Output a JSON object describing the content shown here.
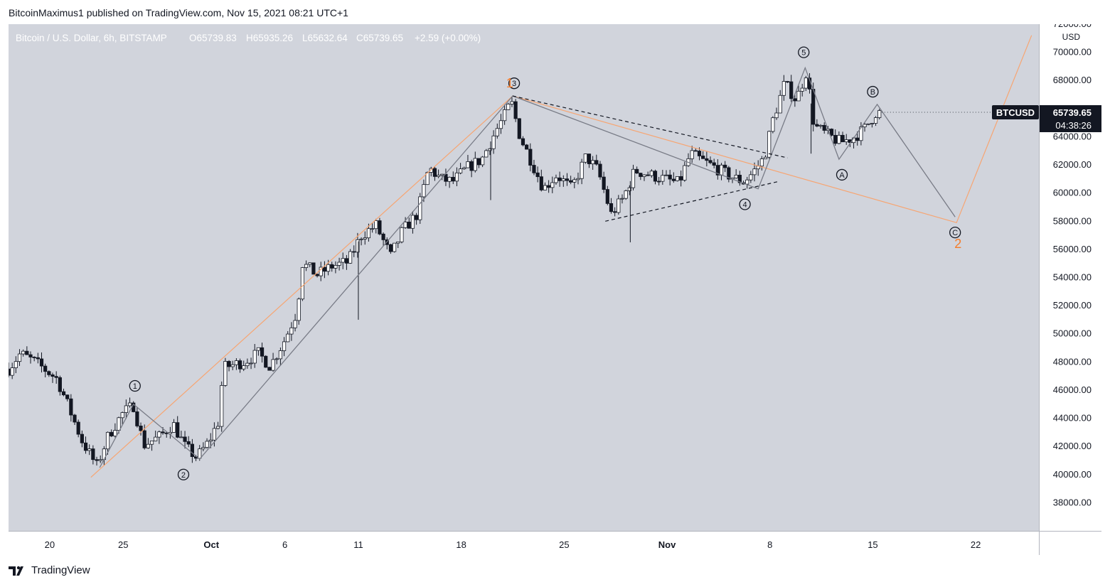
{
  "header": {
    "published_text": "BitcoinMaximus1 published on TradingView.com, Nov 15, 2021 08:21 UTC+1"
  },
  "footer": {
    "brand": "TradingView"
  },
  "colors": {
    "plot_bg": "#d1d4dc",
    "axis_bg": "#ffffff",
    "candle_up": "#ffffff",
    "candle_down": "#131722",
    "wick": "#131722",
    "wave_gray": "#787b86",
    "wave_orange": "#f7a572",
    "orange_label": "#f57c28",
    "label_dark": "#131722"
  },
  "chart_data": {
    "type": "candlestick",
    "title": "Bitcoin / U.S. Dollar, 6h, BITSTAMP",
    "ohlc_legend": {
      "o": "65739.83",
      "h": "65935.26",
      "l": "65632.64",
      "c": "65739.65",
      "change": "+2.59 (+0.00%)"
    },
    "currency": "USD",
    "ylim": [
      36000,
      72000
    ],
    "y_ticks": [
      "38000.00",
      "40000.00",
      "42000.00",
      "44000.00",
      "46000.00",
      "48000.00",
      "50000.00",
      "52000.00",
      "54000.00",
      "56000.00",
      "58000.00",
      "60000.00",
      "62000.00",
      "64000.00",
      "66000.00",
      "68000.00",
      "70000.00",
      "72000.00"
    ],
    "x_ticks": [
      "20",
      "25",
      "Oct",
      "6",
      "11",
      "18",
      "25",
      "Nov",
      "8",
      "15",
      "22"
    ],
    "x_tick_days": [
      -11,
      -6,
      0,
      5,
      10,
      17,
      24,
      31,
      38,
      45,
      52
    ],
    "x_domain_days": [
      -13.8,
      56.3
    ],
    "last_price_label": {
      "symbol": "BTCUSD",
      "price": "65739.65",
      "countdown": "04:38:26",
      "value": 65739.65
    },
    "anchor_points": [
      {
        "day": -13.8,
        "price": 47500
      },
      {
        "day": -13,
        "price": 48600
      },
      {
        "day": -12,
        "price": 48000
      },
      {
        "day": -10.5,
        "price": 46800
      },
      {
        "day": -9.6,
        "price": 44500
      },
      {
        "day": -8.8,
        "price": 42400
      },
      {
        "day": -7.8,
        "price": 40600
      },
      {
        "day": -7.0,
        "price": 42800
      },
      {
        "day": -6.0,
        "price": 44400
      },
      {
        "day": -5.3,
        "price": 44900
      },
      {
        "day": -4.6,
        "price": 42100
      },
      {
        "day": -3.5,
        "price": 42700
      },
      {
        "day": -2.6,
        "price": 43600
      },
      {
        "day": -1.8,
        "price": 42000
      },
      {
        "day": -1.0,
        "price": 41200
      },
      {
        "day": -0.2,
        "price": 42300
      },
      {
        "day": 0.5,
        "price": 43800
      },
      {
        "day": 0.8,
        "price": 47600
      },
      {
        "day": 2.2,
        "price": 48000
      },
      {
        "day": 3.2,
        "price": 48600
      },
      {
        "day": 4.0,
        "price": 47700
      },
      {
        "day": 5.0,
        "price": 49600
      },
      {
        "day": 5.8,
        "price": 51500
      },
      {
        "day": 6.2,
        "price": 55000
      },
      {
        "day": 7.2,
        "price": 54200
      },
      {
        "day": 8.2,
        "price": 54800
      },
      {
        "day": 9.3,
        "price": 55100
      },
      {
        "day": 10.2,
        "price": 57000
      },
      {
        "day": 11.2,
        "price": 57700
      },
      {
        "day": 12.2,
        "price": 55500
      },
      {
        "day": 13.0,
        "price": 57300
      },
      {
        "day": 14.0,
        "price": 58500
      },
      {
        "day": 14.8,
        "price": 61800
      },
      {
        "day": 15.6,
        "price": 61000
      },
      {
        "day": 16.4,
        "price": 60800
      },
      {
        "day": 17.4,
        "price": 61800
      },
      {
        "day": 18.4,
        "price": 62400
      },
      {
        "day": 19.3,
        "price": 64300
      },
      {
        "day": 20.0,
        "price": 65600
      },
      {
        "day": 20.4,
        "price": 66500
      },
      {
        "day": 21.0,
        "price": 64000
      },
      {
        "day": 21.8,
        "price": 62200
      },
      {
        "day": 22.6,
        "price": 60300
      },
      {
        "day": 23.5,
        "price": 61300
      },
      {
        "day": 24.5,
        "price": 60300
      },
      {
        "day": 25.5,
        "price": 62600
      },
      {
        "day": 26.3,
        "price": 61600
      },
      {
        "day": 27.2,
        "price": 58500
      },
      {
        "day": 28.0,
        "price": 59600
      },
      {
        "day": 28.8,
        "price": 61600
      },
      {
        "day": 29.8,
        "price": 61300
      },
      {
        "day": 30.8,
        "price": 61000
      },
      {
        "day": 31.8,
        "price": 60700
      },
      {
        "day": 32.6,
        "price": 62800
      },
      {
        "day": 33.4,
        "price": 62300
      },
      {
        "day": 34.3,
        "price": 61800
      },
      {
        "day": 35.3,
        "price": 61200
      },
      {
        "day": 36.2,
        "price": 60800
      },
      {
        "day": 36.8,
        "price": 61400
      },
      {
        "day": 37.6,
        "price": 62500
      },
      {
        "day": 38.2,
        "price": 65200
      },
      {
        "day": 39.0,
        "price": 67800
      },
      {
        "day": 39.8,
        "price": 66600
      },
      {
        "day": 40.5,
        "price": 68700
      },
      {
        "day": 41.0,
        "price": 64800
      },
      {
        "day": 41.8,
        "price": 64200
      },
      {
        "day": 42.8,
        "price": 63600
      },
      {
        "day": 43.6,
        "price": 63900
      },
      {
        "day": 44.4,
        "price": 64500
      },
      {
        "day": 45.2,
        "price": 65700
      },
      {
        "day": 45.6,
        "price": 65740
      }
    ],
    "wick_spikes": [
      {
        "day": 10.0,
        "low": 51000
      },
      {
        "day": 28.5,
        "low": 56500
      },
      {
        "day": 19.0,
        "low": 59500
      },
      {
        "day": 40.8,
        "low": 62800
      }
    ],
    "wave_labels": [
      {
        "text": "1",
        "day": -5.2,
        "price": 46300,
        "kind": "circle"
      },
      {
        "text": "2",
        "day": -1.9,
        "price": 40000,
        "kind": "circle"
      },
      {
        "text": "3",
        "day": 20.6,
        "price": 67800,
        "kind": "circle"
      },
      {
        "text": "4",
        "day": 36.3,
        "price": 59200,
        "kind": "circle"
      },
      {
        "text": "5",
        "day": 40.3,
        "price": 70000,
        "kind": "circle"
      },
      {
        "text": "A",
        "day": 42.9,
        "price": 61300,
        "kind": "circle"
      },
      {
        "text": "B",
        "day": 45.0,
        "price": 67200,
        "kind": "circle"
      },
      {
        "text": "C",
        "day": 50.6,
        "price": 57200,
        "kind": "circle"
      },
      {
        "text": "1",
        "day": 20.3,
        "price": 67800,
        "kind": "orange"
      },
      {
        "text": "2",
        "day": 50.8,
        "price": 56400,
        "kind": "orange"
      }
    ],
    "gray_wave_path": [
      {
        "day": -7.6,
        "price": 40500
      },
      {
        "day": -5.3,
        "price": 45000
      },
      {
        "day": -0.8,
        "price": 41100
      },
      {
        "day": 20.5,
        "price": 66900
      },
      {
        "day": 37.2,
        "price": 60300
      },
      {
        "day": 40.4,
        "price": 68900
      },
      {
        "day": 42.7,
        "price": 62400
      },
      {
        "day": 45.3,
        "price": 66300
      },
      {
        "day": 50.6,
        "price": 58300
      }
    ],
    "orange_wave_path": [
      {
        "day": -8.2,
        "price": 39800
      },
      {
        "day": 20.5,
        "price": 66900
      },
      {
        "day": 50.7,
        "price": 57900
      },
      {
        "day": 55.8,
        "price": 71200
      }
    ],
    "dashed_lines": [
      {
        "from": {
          "day": 20.5,
          "price": 66900
        },
        "to": {
          "day": 39.2,
          "price": 62500
        }
      },
      {
        "from": {
          "day": 26.8,
          "price": 58000
        },
        "to": {
          "day": 38.5,
          "price": 60800
        }
      }
    ]
  }
}
